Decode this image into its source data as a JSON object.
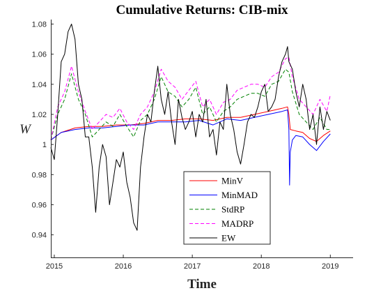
{
  "chart_data": {
    "type": "line",
    "title": "Cumulative Returns: CIB-mix",
    "xlabel": "Time",
    "ylabel": "W",
    "xlim": [
      2014.95,
      2019.33
    ],
    "ylim": [
      0.925,
      1.083
    ],
    "x_ticks": [
      {
        "value": 2015,
        "label": "2015"
      },
      {
        "value": 2016,
        "label": "2016"
      },
      {
        "value": 2017,
        "label": "2017"
      },
      {
        "value": 2018,
        "label": "2018"
      },
      {
        "value": 2019,
        "label": "2019"
      }
    ],
    "y_ticks": [
      {
        "value": 0.94,
        "label": "0.94"
      },
      {
        "value": 0.96,
        "label": "0.96"
      },
      {
        "value": 0.98,
        "label": "0.98"
      },
      {
        "value": 1.0,
        "label": "1"
      },
      {
        "value": 1.02,
        "label": "1.02"
      },
      {
        "value": 1.04,
        "label": "1.04"
      },
      {
        "value": 1.06,
        "label": "1.06"
      },
      {
        "value": 1.08,
        "label": "1.08"
      }
    ],
    "grid": false,
    "legend_position": "lower-center",
    "series": [
      {
        "name": "MinV",
        "color": "#ff0000",
        "dash": "solid",
        "x": [
          2014.95,
          2015.1,
          2015.3,
          2015.5,
          2015.7,
          2015.9,
          2016.1,
          2016.3,
          2016.5,
          2016.7,
          2016.9,
          2017.1,
          2017.3,
          2017.5,
          2017.7,
          2017.9,
          2018.1,
          2018.3,
          2018.38,
          2018.4,
          2018.42,
          2018.5,
          2018.6,
          2018.7,
          2018.8,
          2018.9,
          2019.0
        ],
        "y": [
          1.003,
          1.008,
          1.011,
          1.012,
          1.012,
          1.013,
          1.013,
          1.014,
          1.016,
          1.016,
          1.017,
          1.017,
          1.016,
          1.018,
          1.018,
          1.02,
          1.022,
          1.024,
          1.025,
          1.02,
          1.01,
          1.009,
          1.008,
          1.004,
          1.002,
          1.006,
          1.009
        ]
      },
      {
        "name": "MinMAD",
        "color": "#0000ff",
        "dash": "solid",
        "x": [
          2014.95,
          2015.1,
          2015.3,
          2015.5,
          2015.7,
          2015.9,
          2016.1,
          2016.3,
          2016.5,
          2016.7,
          2016.9,
          2017.1,
          2017.3,
          2017.5,
          2017.7,
          2017.9,
          2018.1,
          2018.3,
          2018.38,
          2018.4,
          2018.41,
          2018.42,
          2018.45,
          2018.5,
          2018.6,
          2018.7,
          2018.8,
          2018.9,
          2019.0
        ],
        "y": [
          1.003,
          1.008,
          1.01,
          1.011,
          1.011,
          1.012,
          1.013,
          1.013,
          1.015,
          1.015,
          1.015,
          1.016,
          1.013,
          1.017,
          1.016,
          1.018,
          1.02,
          1.022,
          1.023,
          1.01,
          0.973,
          0.995,
          1.003,
          1.006,
          1.005,
          1.0,
          0.996,
          1.002,
          1.007
        ]
      },
      {
        "name": "StdRP",
        "color": "#008000",
        "dash": "dashed",
        "x": [
          2014.95,
          2015.05,
          2015.15,
          2015.25,
          2015.35,
          2015.45,
          2015.55,
          2015.65,
          2015.75,
          2015.85,
          2015.95,
          2016.05,
          2016.15,
          2016.25,
          2016.35,
          2016.45,
          2016.55,
          2016.65,
          2016.75,
          2016.85,
          2016.95,
          2017.05,
          2017.15,
          2017.25,
          2017.35,
          2017.45,
          2017.55,
          2017.65,
          2017.75,
          2017.85,
          2017.95,
          2018.05,
          2018.15,
          2018.25,
          2018.35,
          2018.4,
          2018.45,
          2018.55,
          2018.65,
          2018.75,
          2018.85,
          2018.95,
          2019.0
        ],
        "y": [
          1.003,
          1.02,
          1.03,
          1.047,
          1.03,
          1.02,
          1.005,
          1.01,
          1.015,
          1.012,
          1.02,
          1.012,
          1.005,
          1.016,
          1.02,
          1.03,
          1.045,
          1.035,
          1.032,
          1.025,
          1.03,
          1.038,
          1.02,
          1.025,
          1.015,
          1.022,
          1.025,
          1.03,
          1.032,
          1.034,
          1.034,
          1.032,
          1.04,
          1.042,
          1.05,
          1.048,
          1.035,
          1.02,
          1.015,
          1.01,
          1.018,
          1.01,
          1.01
        ]
      },
      {
        "name": "MADRP",
        "color": "#ff00ff",
        "dash": "dashed",
        "x": [
          2014.95,
          2015.05,
          2015.15,
          2015.25,
          2015.35,
          2015.45,
          2015.55,
          2015.65,
          2015.75,
          2015.85,
          2015.95,
          2016.05,
          2016.15,
          2016.25,
          2016.35,
          2016.45,
          2016.55,
          2016.65,
          2016.75,
          2016.85,
          2016.95,
          2017.05,
          2017.15,
          2017.25,
          2017.35,
          2017.45,
          2017.55,
          2017.65,
          2017.75,
          2017.85,
          2017.95,
          2018.05,
          2018.15,
          2018.25,
          2018.35,
          2018.4,
          2018.45,
          2018.55,
          2018.65,
          2018.75,
          2018.85,
          2018.95,
          2019.0
        ],
        "y": [
          1.003,
          1.025,
          1.035,
          1.052,
          1.035,
          1.022,
          1.01,
          1.015,
          1.02,
          1.018,
          1.024,
          1.015,
          1.01,
          1.02,
          1.025,
          1.035,
          1.05,
          1.042,
          1.038,
          1.03,
          1.036,
          1.042,
          1.025,
          1.03,
          1.02,
          1.028,
          1.03,
          1.036,
          1.038,
          1.04,
          1.04,
          1.038,
          1.045,
          1.048,
          1.057,
          1.058,
          1.045,
          1.03,
          1.025,
          1.02,
          1.03,
          1.022,
          1.033
        ]
      },
      {
        "name": "EW",
        "color": "#000000",
        "dash": "solid",
        "x": [
          2014.95,
          2015.0,
          2015.05,
          2015.1,
          2015.15,
          2015.2,
          2015.25,
          2015.3,
          2015.35,
          2015.4,
          2015.45,
          2015.5,
          2015.55,
          2015.6,
          2015.65,
          2015.7,
          2015.75,
          2015.8,
          2015.85,
          2015.9,
          2015.95,
          2016.0,
          2016.05,
          2016.1,
          2016.15,
          2016.2,
          2016.25,
          2016.3,
          2016.35,
          2016.4,
          2016.45,
          2016.5,
          2016.55,
          2016.6,
          2016.65,
          2016.7,
          2016.75,
          2016.8,
          2016.85,
          2016.9,
          2016.95,
          2017.0,
          2017.05,
          2017.1,
          2017.15,
          2017.2,
          2017.25,
          2017.3,
          2017.35,
          2017.4,
          2017.45,
          2017.5,
          2017.55,
          2017.6,
          2017.65,
          2017.7,
          2017.75,
          2017.8,
          2017.85,
          2017.9,
          2017.95,
          2018.0,
          2018.05,
          2018.1,
          2018.15,
          2018.2,
          2018.25,
          2018.3,
          2018.35,
          2018.38,
          2018.4,
          2018.45,
          2018.5,
          2018.55,
          2018.6,
          2018.65,
          2018.7,
          2018.75,
          2018.8,
          2018.85,
          2018.9,
          2018.95,
          2019.0
        ],
        "y": [
          0.998,
          0.99,
          1.02,
          1.055,
          1.06,
          1.075,
          1.08,
          1.07,
          1.04,
          1.03,
          1.005,
          1.005,
          0.985,
          0.955,
          0.985,
          1.0,
          0.992,
          0.96,
          0.975,
          0.99,
          0.985,
          0.995,
          0.975,
          0.965,
          0.948,
          0.943,
          0.985,
          1.005,
          1.02,
          1.015,
          1.035,
          1.052,
          1.03,
          1.02,
          1.035,
          1.015,
          1.0,
          1.03,
          1.018,
          1.01,
          1.015,
          1.022,
          1.005,
          1.02,
          1.015,
          1.03,
          1.005,
          1.01,
          0.993,
          1.015,
          1.01,
          1.04,
          1.02,
          1.01,
          0.995,
          0.987,
          1.0,
          1.015,
          1.02,
          1.018,
          1.025,
          1.035,
          1.04,
          1.022,
          1.025,
          1.03,
          1.045,
          1.055,
          1.06,
          1.065,
          1.055,
          1.05,
          1.035,
          1.025,
          1.04,
          1.03,
          1.01,
          1.02,
          1.0,
          1.025,
          1.01,
          1.022,
          1.016
        ]
      }
    ]
  }
}
